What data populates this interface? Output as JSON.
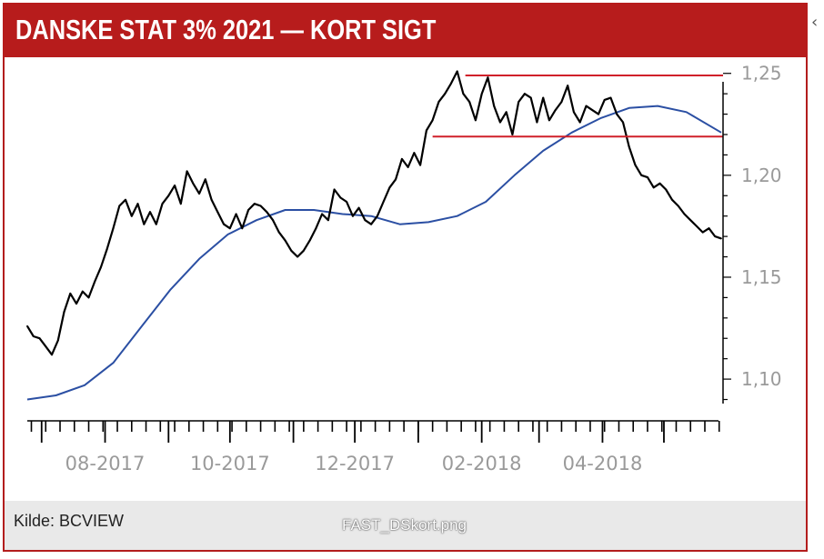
{
  "header": {
    "title": "DANSKE STAT 3% 2021 — KORT SIGT"
  },
  "footer": {
    "source": "Kilde: BCVIEW",
    "filename": "FAST_DSkort.png"
  },
  "colors": {
    "header_bg": "#b71c1c",
    "price_line": "#000000",
    "avg_line": "#2b4fa3",
    "level_line": "#d0202a"
  },
  "chart_data": {
    "type": "line",
    "title": "",
    "ylim": [
      1.088,
      1.253
    ],
    "y_ticks": [
      "1,25",
      "1,20",
      "1,15",
      "1,10"
    ],
    "y_tick_values": [
      1.25,
      1.2,
      1.15,
      1.1
    ],
    "x_tick_labels": [
      "08-2017",
      "10-2017",
      "12-2017",
      "02-2018",
      "04-2018"
    ],
    "x_tick_dates": [
      "2017-08-01",
      "2017-10-01",
      "2017-12-01",
      "2018-02-01",
      "2018-04-01"
    ],
    "x_range": [
      "2017-06-24",
      "2018-05-29"
    ],
    "level_lines": [
      {
        "value": 1.249,
        "from": "2018-01-24",
        "to": "2018-05-29"
      },
      {
        "value": 1.219,
        "from": "2018-01-08",
        "to": "2018-05-29"
      }
    ],
    "series": [
      {
        "type": "price",
        "x": [
          "2017-06-24",
          "2017-06-27",
          "2017-06-30",
          "2017-07-03",
          "2017-07-06",
          "2017-07-09",
          "2017-07-12",
          "2017-07-15",
          "2017-07-18",
          "2017-07-21",
          "2017-07-24",
          "2017-07-27",
          "2017-07-30",
          "2017-08-02",
          "2017-08-05",
          "2017-08-08",
          "2017-08-11",
          "2017-08-14",
          "2017-08-17",
          "2017-08-20",
          "2017-08-23",
          "2017-08-26",
          "2017-08-29",
          "2017-09-01",
          "2017-09-04",
          "2017-09-07",
          "2017-09-10",
          "2017-09-13",
          "2017-09-16",
          "2017-09-19",
          "2017-09-22",
          "2017-09-25",
          "2017-09-28",
          "2017-10-01",
          "2017-10-04",
          "2017-10-07",
          "2017-10-10",
          "2017-10-13",
          "2017-10-16",
          "2017-10-19",
          "2017-10-22",
          "2017-10-25",
          "2017-10-28",
          "2017-10-31",
          "2017-11-03",
          "2017-11-06",
          "2017-11-09",
          "2017-11-12",
          "2017-11-15",
          "2017-11-18",
          "2017-11-21",
          "2017-11-24",
          "2017-11-27",
          "2017-11-30",
          "2017-12-03",
          "2017-12-06",
          "2017-12-09",
          "2017-12-12",
          "2017-12-15",
          "2017-12-18",
          "2017-12-21",
          "2017-12-24",
          "2017-12-27",
          "2017-12-30",
          "2018-01-02",
          "2018-01-05",
          "2018-01-08",
          "2018-01-11",
          "2018-01-14",
          "2018-01-17",
          "2018-01-20",
          "2018-01-23",
          "2018-01-26",
          "2018-01-29",
          "2018-02-01",
          "2018-02-04",
          "2018-02-07",
          "2018-02-10",
          "2018-02-13",
          "2018-02-16",
          "2018-02-19",
          "2018-02-22",
          "2018-02-25",
          "2018-02-28",
          "2018-03-03",
          "2018-03-06",
          "2018-03-09",
          "2018-03-12",
          "2018-03-15",
          "2018-03-18",
          "2018-03-21",
          "2018-03-24",
          "2018-03-27",
          "2018-03-30",
          "2018-04-02",
          "2018-04-05",
          "2018-04-08",
          "2018-04-11",
          "2018-04-14",
          "2018-04-17",
          "2018-04-20",
          "2018-04-23",
          "2018-04-26",
          "2018-04-29",
          "2018-05-02",
          "2018-05-05",
          "2018-05-08",
          "2018-05-11",
          "2018-05-14",
          "2018-05-17",
          "2018-05-20",
          "2018-05-23",
          "2018-05-26",
          "2018-05-29"
        ],
        "values": [
          1.126,
          1.121,
          1.12,
          1.116,
          1.112,
          1.119,
          1.133,
          1.142,
          1.137,
          1.143,
          1.14,
          1.148,
          1.155,
          1.164,
          1.174,
          1.185,
          1.188,
          1.18,
          1.186,
          1.176,
          1.182,
          1.176,
          1.186,
          1.19,
          1.195,
          1.186,
          1.202,
          1.196,
          1.191,
          1.198,
          1.188,
          1.182,
          1.176,
          1.174,
          1.181,
          1.174,
          1.183,
          1.186,
          1.185,
          1.182,
          1.178,
          1.172,
          1.168,
          1.163,
          1.16,
          1.163,
          1.168,
          1.174,
          1.181,
          1.178,
          1.193,
          1.189,
          1.187,
          1.18,
          1.184,
          1.178,
          1.176,
          1.18,
          1.187,
          1.194,
          1.198,
          1.208,
          1.204,
          1.211,
          1.205,
          1.222,
          1.227,
          1.236,
          1.24,
          1.245,
          1.251,
          1.24,
          1.236,
          1.227,
          1.24,
          1.248,
          1.234,
          1.226,
          1.231,
          1.22,
          1.236,
          1.24,
          1.238,
          1.226,
          1.238,
          1.227,
          1.232,
          1.236,
          1.244,
          1.231,
          1.226,
          1.234,
          1.232,
          1.23,
          1.237,
          1.238,
          1.23,
          1.226,
          1.214,
          1.205,
          1.2,
          1.199,
          1.194,
          1.196,
          1.193,
          1.188,
          1.185,
          1.181,
          1.178,
          1.175,
          1.172,
          1.174,
          1.17,
          1.169
        ]
      },
      {
        "type": "moving_average",
        "x": [
          "2017-06-24",
          "2017-07-08",
          "2017-07-22",
          "2017-08-05",
          "2017-08-19",
          "2017-09-02",
          "2017-09-16",
          "2017-09-30",
          "2017-10-14",
          "2017-10-28",
          "2017-11-11",
          "2017-11-25",
          "2017-12-09",
          "2017-12-23",
          "2018-01-06",
          "2018-01-20",
          "2018-02-03",
          "2018-02-17",
          "2018-03-03",
          "2018-03-17",
          "2018-03-31",
          "2018-04-14",
          "2018-04-28",
          "2018-05-12",
          "2018-05-29"
        ],
        "values": [
          1.09,
          1.092,
          1.097,
          1.108,
          1.126,
          1.144,
          1.159,
          1.171,
          1.178,
          1.183,
          1.183,
          1.181,
          1.18,
          1.176,
          1.177,
          1.18,
          1.187,
          1.2,
          1.212,
          1.221,
          1.228,
          1.233,
          1.234,
          1.231,
          1.221
        ]
      }
    ]
  }
}
